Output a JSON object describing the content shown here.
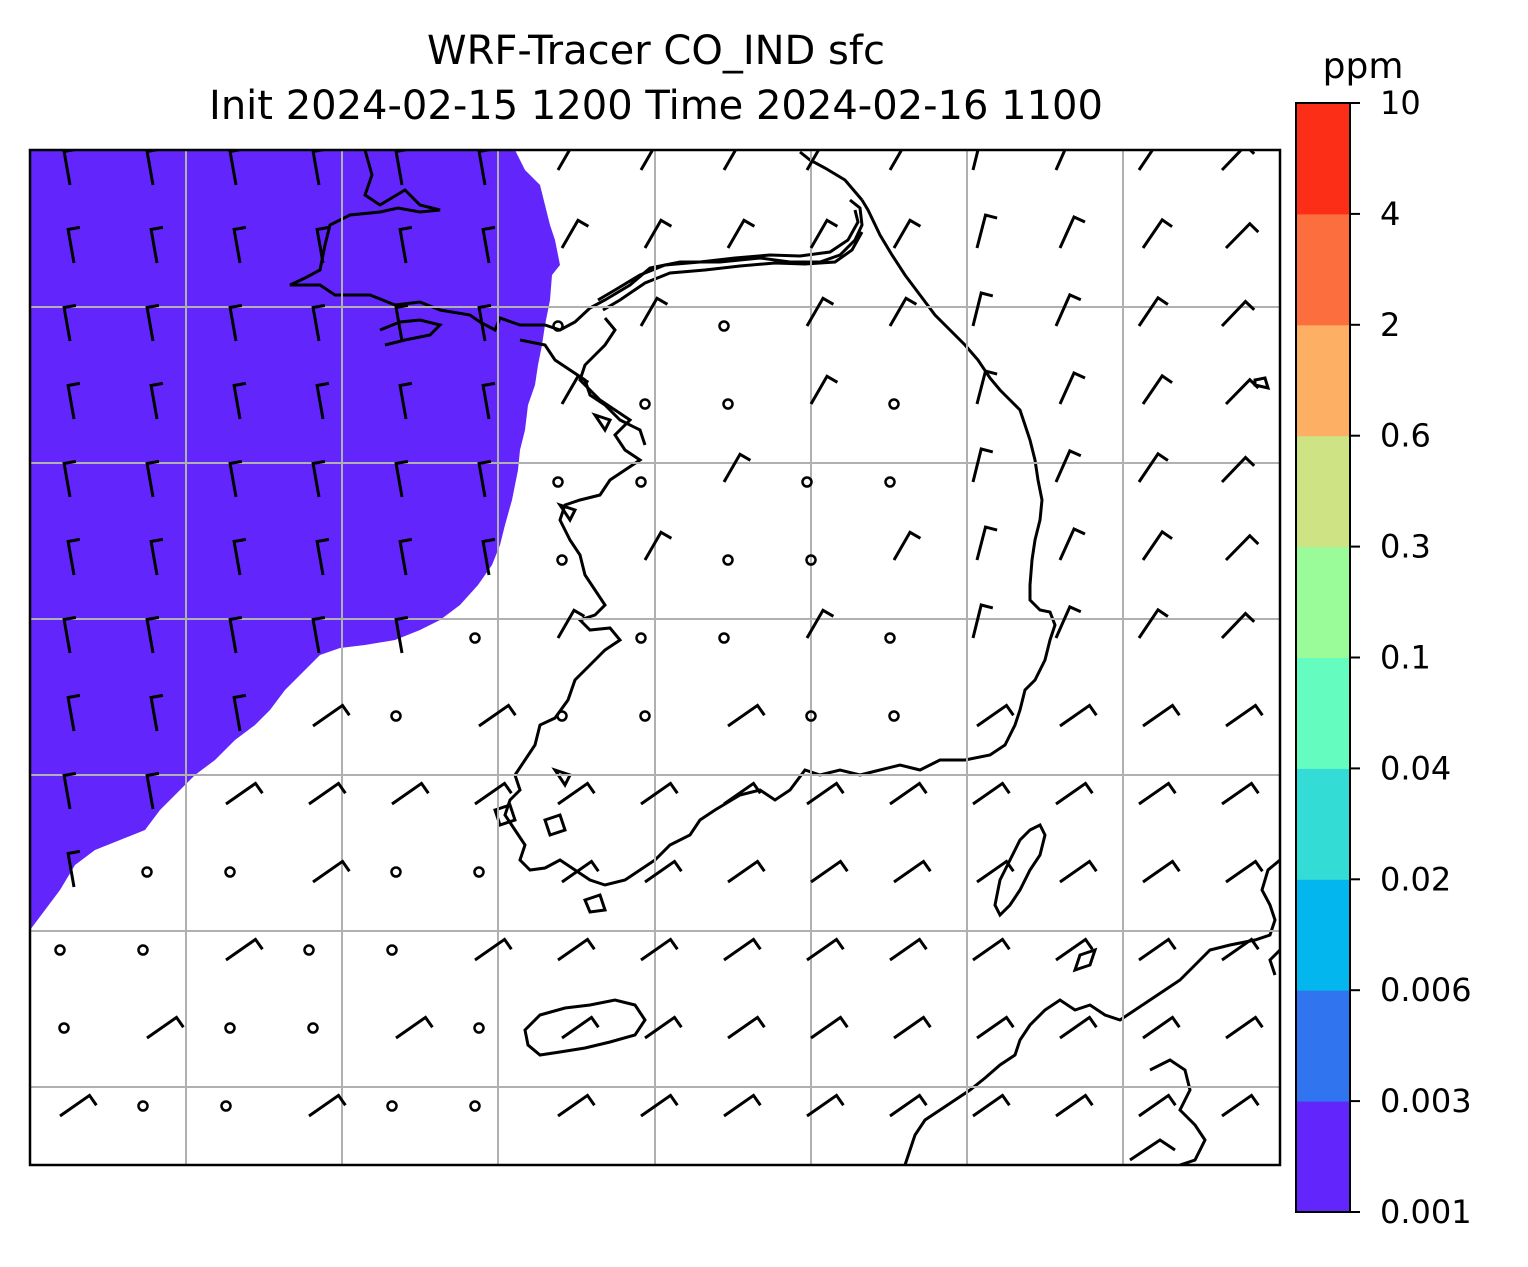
{
  "title": {
    "line1": "WRF-Tracer CO_IND sfc",
    "line2": "Init 2024-02-15 1200 Time 2024-02-16 1100"
  },
  "colorbar": {
    "unit": "ppm",
    "levels": [
      "0.001",
      "0.003",
      "0.006",
      "0.02",
      "0.04",
      "0.1",
      "0.3",
      "0.6",
      "2",
      "4",
      "10"
    ],
    "colors": [
      "#6226fc",
      "#3174f0",
      "#03b6ed",
      "#33ddd6",
      "#65fcc0",
      "#9afc98",
      "#cde384",
      "#fdaf64",
      "#fd6e3e",
      "#fd2e17"
    ]
  },
  "map": {
    "plume_color": "#6226fc",
    "plume_level": "0.001–0.003 ppm",
    "gridline_color": "#b0b0b0",
    "coastline_color": "#000000",
    "features": [
      "coastline",
      "wind-barbs",
      "calm-circles",
      "lat-lon-grid"
    ]
  }
}
